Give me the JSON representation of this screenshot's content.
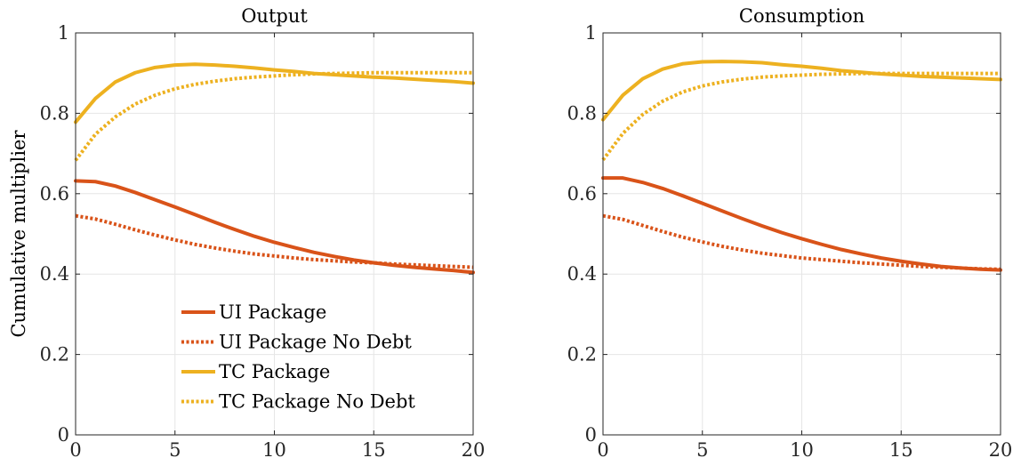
{
  "figure": {
    "ylabel": "Cumulative multiplier"
  },
  "colors": {
    "ui": "#D95319",
    "tc": "#EDB120",
    "grid": "#e6e6e6",
    "axis": "#262626"
  },
  "chart_data": [
    {
      "type": "line",
      "title": "Output",
      "xlabel": "",
      "ylabel": "Cumulative multiplier",
      "xlim": [
        0,
        20
      ],
      "ylim": [
        0,
        1
      ],
      "xticks": [
        0,
        5,
        10,
        15,
        20
      ],
      "yticks": [
        0,
        0.2,
        0.4,
        0.6,
        0.8,
        1
      ],
      "grid": true,
      "legend": "lower-left",
      "x": [
        0,
        1,
        2,
        3,
        4,
        5,
        6,
        7,
        8,
        9,
        10,
        11,
        12,
        13,
        14,
        15,
        16,
        17,
        18,
        19,
        20
      ],
      "series": [
        {
          "name": "UI Package",
          "color": "#D95319",
          "style": "solid",
          "values": [
            0.632,
            0.63,
            0.619,
            0.603,
            0.585,
            0.567,
            0.548,
            0.529,
            0.511,
            0.494,
            0.479,
            0.466,
            0.454,
            0.444,
            0.435,
            0.428,
            0.422,
            0.417,
            0.413,
            0.409,
            0.404
          ]
        },
        {
          "name": "UI Package No Debt",
          "color": "#D95319",
          "style": "dotted",
          "values": [
            0.545,
            0.537,
            0.524,
            0.51,
            0.497,
            0.485,
            0.474,
            0.465,
            0.457,
            0.45,
            0.445,
            0.44,
            0.436,
            0.433,
            0.43,
            0.428,
            0.425,
            0.423,
            0.421,
            0.419,
            0.417
          ]
        },
        {
          "name": "TC Package",
          "color": "#EDB120",
          "style": "solid",
          "values": [
            0.778,
            0.837,
            0.878,
            0.901,
            0.914,
            0.92,
            0.922,
            0.92,
            0.917,
            0.913,
            0.908,
            0.904,
            0.899,
            0.896,
            0.893,
            0.89,
            0.888,
            0.885,
            0.882,
            0.879,
            0.875
          ]
        },
        {
          "name": "TC Package No Debt",
          "color": "#EDB120",
          "style": "dotted",
          "values": [
            0.683,
            0.748,
            0.791,
            0.823,
            0.845,
            0.861,
            0.872,
            0.88,
            0.886,
            0.89,
            0.893,
            0.896,
            0.898,
            0.899,
            0.9,
            0.901,
            0.901,
            0.901,
            0.901,
            0.901,
            0.901
          ]
        }
      ]
    },
    {
      "type": "line",
      "title": "Consumption",
      "xlabel": "",
      "ylabel": "",
      "xlim": [
        0,
        20
      ],
      "ylim": [
        0,
        1
      ],
      "xticks": [
        0,
        5,
        10,
        15,
        20
      ],
      "yticks": [
        0,
        0.2,
        0.4,
        0.6,
        0.8,
        1
      ],
      "grid": true,
      "x": [
        0,
        1,
        2,
        3,
        4,
        5,
        6,
        7,
        8,
        9,
        10,
        11,
        12,
        13,
        14,
        15,
        16,
        17,
        18,
        19,
        20
      ],
      "series": [
        {
          "name": "UI Package",
          "color": "#D95319",
          "style": "solid",
          "values": [
            0.639,
            0.639,
            0.628,
            0.613,
            0.595,
            0.576,
            0.557,
            0.538,
            0.52,
            0.503,
            0.488,
            0.474,
            0.461,
            0.45,
            0.44,
            0.432,
            0.425,
            0.419,
            0.415,
            0.412,
            0.41
          ]
        },
        {
          "name": "UI Package No Debt",
          "color": "#D95319",
          "style": "dotted",
          "values": [
            0.545,
            0.536,
            0.521,
            0.506,
            0.492,
            0.48,
            0.469,
            0.46,
            0.452,
            0.446,
            0.44,
            0.436,
            0.432,
            0.428,
            0.425,
            0.422,
            0.419,
            0.417,
            0.415,
            0.413,
            0.412
          ]
        },
        {
          "name": "TC Package",
          "color": "#EDB120",
          "style": "solid",
          "values": [
            0.784,
            0.845,
            0.886,
            0.91,
            0.923,
            0.928,
            0.929,
            0.928,
            0.926,
            0.921,
            0.917,
            0.912,
            0.906,
            0.902,
            0.898,
            0.895,
            0.892,
            0.89,
            0.888,
            0.886,
            0.884
          ]
        },
        {
          "name": "TC Package No Debt",
          "color": "#EDB120",
          "style": "dotted",
          "values": [
            0.684,
            0.75,
            0.797,
            0.83,
            0.853,
            0.868,
            0.878,
            0.885,
            0.89,
            0.893,
            0.895,
            0.897,
            0.898,
            0.899,
            0.899,
            0.899,
            0.899,
            0.899,
            0.899,
            0.899,
            0.899
          ]
        }
      ]
    }
  ]
}
